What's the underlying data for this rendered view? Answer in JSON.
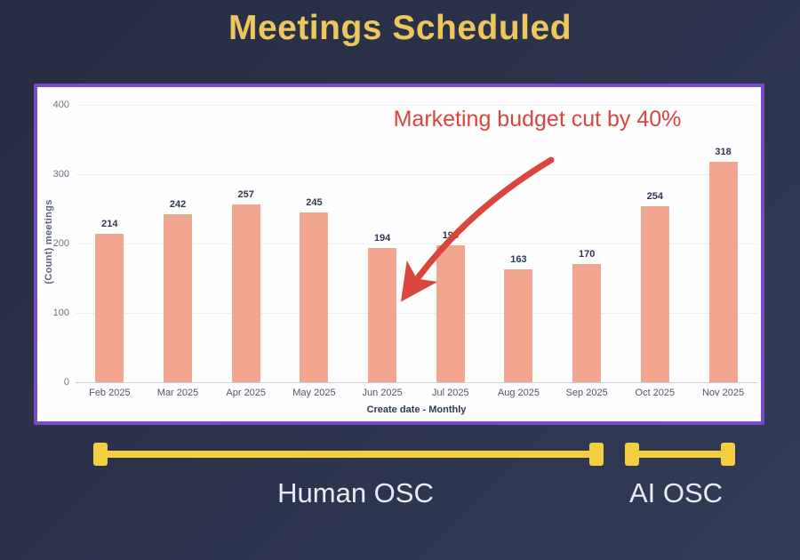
{
  "slide": {
    "title": "Meetings Scheduled"
  },
  "annotation": {
    "text": "Marketing budget cut by 40%",
    "color": "#da453d"
  },
  "chart_data": {
    "type": "bar",
    "categories": [
      "Feb 2025",
      "Mar 2025",
      "Apr 2025",
      "May 2025",
      "Jun 2025",
      "Jul 2025",
      "Aug 2025",
      "Sep 2025",
      "Oct 2025",
      "Nov 2025"
    ],
    "values": [
      214,
      242,
      257,
      245,
      194,
      198,
      163,
      170,
      254,
      318
    ],
    "title": "Meetings Scheduled",
    "xlabel": "Create date - Monthly",
    "ylabel": "(Count) meetings",
    "ylim": [
      0,
      400
    ],
    "yticks": [
      0,
      100,
      200,
      300,
      400
    ],
    "grid": true,
    "legend": "none",
    "bar_color": "#f2a68f",
    "annotation": "Marketing budget cut by 40%"
  },
  "segments": [
    {
      "label": "Human OSC"
    },
    {
      "label": "AI OSC"
    }
  ],
  "colors": {
    "background": "#2b334b",
    "title": "#edc75e",
    "panel_border": "#7a4bc8",
    "panel_background": "#fffeff",
    "bar": "#f2a68f",
    "annotation_red": "#da453d",
    "bracket_yellow": "#f3cf3f",
    "segment_label": "#e7ebf3",
    "value_label": "#2e3950"
  }
}
